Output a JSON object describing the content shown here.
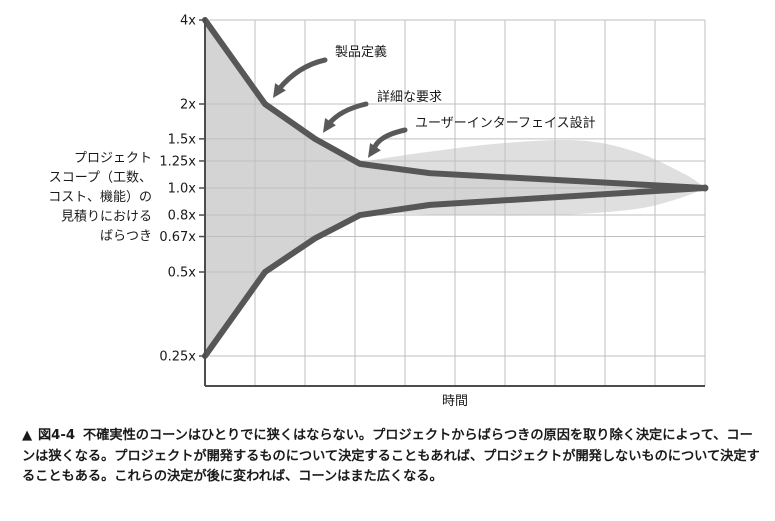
{
  "chart_data": {
    "type": "line",
    "scale": "log",
    "ylabel_lines": [
      "プロジェクト",
      "スコープ（工数、",
      "コスト、機能）の",
      "見積りにおける",
      "ばらつき"
    ],
    "xlabel": "時間",
    "y_ticks": [
      {
        "label": "4x",
        "value": 4
      },
      {
        "label": "2x",
        "value": 2
      },
      {
        "label": "1.5x",
        "value": 1.5
      },
      {
        "label": "1.25x",
        "value": 1.25
      },
      {
        "label": "1.0x",
        "value": 1.0
      },
      {
        "label": "0.8x",
        "value": 0.8
      },
      {
        "label": "0.67x",
        "value": 0.67
      },
      {
        "label": "0.5x",
        "value": 0.5
      },
      {
        "label": "0.25x",
        "value": 0.25
      }
    ],
    "ylim": [
      0.2,
      4
    ],
    "x_grid_columns": 10,
    "grid": true,
    "series": [
      {
        "role": "upper",
        "x": [
          0,
          1.2,
          2.2,
          3.1,
          4.5,
          10
        ],
        "values": [
          4.0,
          2.0,
          1.5,
          1.22,
          1.13,
          1.0
        ]
      },
      {
        "role": "lower",
        "x": [
          0,
          1.2,
          2.2,
          3.1,
          4.5,
          10
        ],
        "values": [
          0.25,
          0.5,
          0.66,
          0.8,
          0.87,
          1.0
        ]
      }
    ],
    "widened_band": {
      "upper": {
        "x": [
          3.1,
          4.5,
          6,
          7.5,
          8.6,
          9.6,
          10
        ],
        "values": [
          1.24,
          1.35,
          1.45,
          1.48,
          1.35,
          1.12,
          1.0
        ]
      },
      "lower": {
        "x": [
          3.1,
          5,
          7,
          8.6,
          9.5,
          10
        ],
        "values": [
          0.82,
          0.8,
          0.8,
          0.84,
          0.92,
          1.0
        ]
      }
    },
    "annotations": [
      {
        "text": "製品定義",
        "target_x": 1.2,
        "target_value": 2.0
      },
      {
        "text": "詳細な要求",
        "target_x": 2.2,
        "target_value": 1.5
      },
      {
        "text": "ユーザーインターフェイス設計",
        "target_x": 3.1,
        "target_value": 1.22
      }
    ],
    "colors": {
      "line": "#575757",
      "cone_fill": "#d4d4d4",
      "grid": "#bfbfbf",
      "axis": "#4d4d4d",
      "arrow": "#595959"
    }
  },
  "caption": {
    "marker": "▲",
    "figure_number": "図4-4",
    "text": "不確実性のコーンはひとりでに狭くはならない。プロジェクトからばらつきの原因を取り除く決定によって、コーンは狭くなる。プロジェクトが開発するものについて決定することもあれば、プロジェクトが開発しないものについて決定することもある。これらの決定が後に変われば、コーンはまた広くなる。"
  }
}
